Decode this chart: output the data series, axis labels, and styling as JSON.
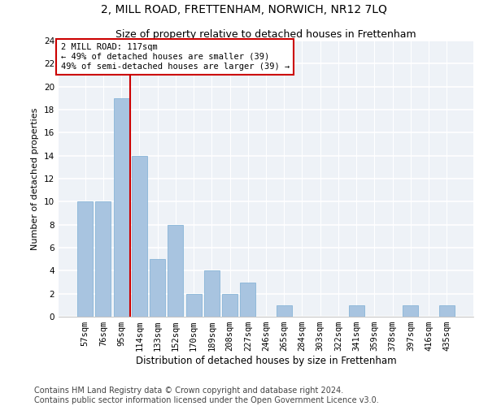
{
  "title": "2, MILL ROAD, FRETTENHAM, NORWICH, NR12 7LQ",
  "subtitle": "Size of property relative to detached houses in Frettenham",
  "xlabel": "Distribution of detached houses by size in Frettenham",
  "ylabel": "Number of detached properties",
  "categories": [
    "57sqm",
    "76sqm",
    "95sqm",
    "114sqm",
    "133sqm",
    "152sqm",
    "170sqm",
    "189sqm",
    "208sqm",
    "227sqm",
    "246sqm",
    "265sqm",
    "284sqm",
    "303sqm",
    "322sqm",
    "341sqm",
    "359sqm",
    "378sqm",
    "397sqm",
    "416sqm",
    "435sqm"
  ],
  "values": [
    10,
    10,
    19,
    14,
    5,
    8,
    2,
    4,
    2,
    3,
    0,
    1,
    0,
    0,
    0,
    1,
    0,
    0,
    1,
    0,
    1
  ],
  "bar_color": "#a8c4e0",
  "bar_edge_color": "#7aadd4",
  "highlight_line_color": "#cc0000",
  "annotation_box_text": "2 MILL ROAD: 117sqm\n← 49% of detached houses are smaller (39)\n49% of semi-detached houses are larger (39) →",
  "annotation_box_color": "#cc0000",
  "ylim": [
    0,
    24
  ],
  "yticks": [
    0,
    2,
    4,
    6,
    8,
    10,
    12,
    14,
    16,
    18,
    20,
    22,
    24
  ],
  "background_color": "#eef2f7",
  "footer_line1": "Contains HM Land Registry data © Crown copyright and database right 2024.",
  "footer_line2": "Contains public sector information licensed under the Open Government Licence v3.0.",
  "title_fontsize": 10,
  "subtitle_fontsize": 9,
  "xlabel_fontsize": 8.5,
  "ylabel_fontsize": 8,
  "tick_fontsize": 7.5,
  "footer_fontsize": 7
}
